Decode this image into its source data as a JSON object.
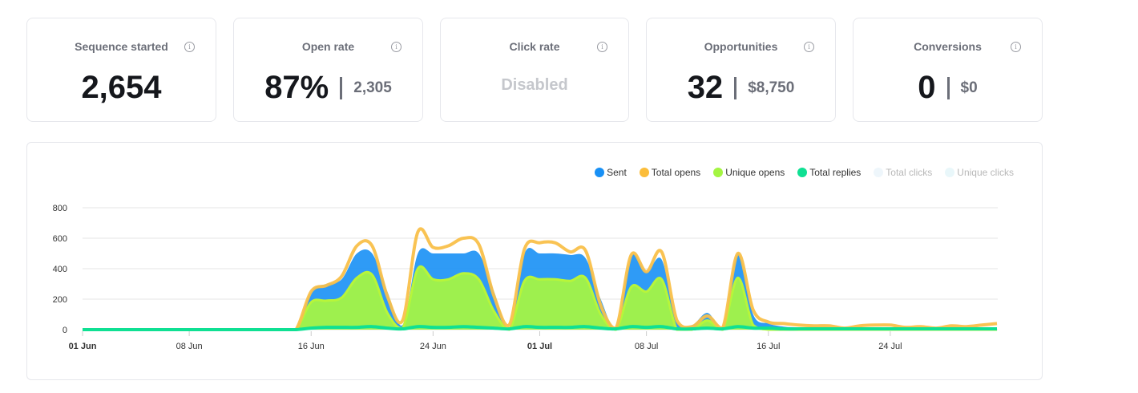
{
  "cards": [
    {
      "title": "Sequence started",
      "value": "2,654"
    },
    {
      "title": "Open rate",
      "value": "87%",
      "secondary": "2,305"
    },
    {
      "title": "Click rate",
      "value": "Disabled"
    },
    {
      "title": "Opportunities",
      "value": "32",
      "secondary": "$8,750"
    },
    {
      "title": "Conversions",
      "value": "0",
      "secondary": "$0"
    }
  ],
  "chart_data": {
    "type": "area",
    "x_start": "01 Jun",
    "x_end": "31 Jul",
    "xticks": [
      {
        "label": "01 Jun",
        "day": 0,
        "bold": true
      },
      {
        "label": "08 Jun",
        "day": 7
      },
      {
        "label": "16 Jun",
        "day": 15
      },
      {
        "label": "24 Jun",
        "day": 23
      },
      {
        "label": "01 Jul",
        "day": 30,
        "bold": true
      },
      {
        "label": "08 Jul",
        "day": 37
      },
      {
        "label": "16 Jul",
        "day": 45
      },
      {
        "label": "24 Jul",
        "day": 53
      }
    ],
    "yticks": [
      0,
      200,
      400,
      600,
      800
    ],
    "ylim": [
      0,
      800
    ],
    "legend": [
      {
        "name": "Sent",
        "color": "#1890f5",
        "active": true
      },
      {
        "name": "Total opens",
        "color": "#fbbd3a",
        "active": true
      },
      {
        "name": "Unique opens",
        "color": "#a4f542",
        "active": true
      },
      {
        "name": "Total replies",
        "color": "#0fe093",
        "active": true
      },
      {
        "name": "Total clicks",
        "color": "#eef6fb",
        "active": false
      },
      {
        "name": "Unique clicks",
        "color": "#e9f7fa",
        "active": false
      }
    ],
    "series": {
      "sent": [
        0,
        0,
        0,
        0,
        0,
        0,
        0,
        0,
        0,
        0,
        0,
        0,
        0,
        0,
        0,
        250,
        300,
        330,
        500,
        500,
        250,
        30,
        500,
        500,
        500,
        500,
        500,
        250,
        0,
        500,
        500,
        500,
        490,
        470,
        200,
        0,
        480,
        380,
        460,
        50,
        30,
        110,
        10,
        500,
        100,
        40,
        20,
        15,
        10,
        10,
        5,
        5,
        10,
        10,
        10,
        5,
        10,
        10,
        5,
        5,
        5
      ],
      "opens": [
        0,
        0,
        0,
        0,
        0,
        0,
        0,
        0,
        0,
        0,
        0,
        0,
        0,
        0,
        0,
        250,
        290,
        350,
        550,
        550,
        220,
        60,
        640,
        540,
        550,
        600,
        560,
        220,
        30,
        530,
        570,
        570,
        510,
        520,
        160,
        10,
        490,
        380,
        510,
        60,
        20,
        90,
        10,
        500,
        130,
        50,
        40,
        30,
        25,
        25,
        10,
        25,
        30,
        30,
        15,
        20,
        10,
        25,
        20,
        30,
        40
      ],
      "unique": [
        0,
        0,
        0,
        0,
        0,
        0,
        0,
        0,
        0,
        0,
        0,
        0,
        0,
        0,
        0,
        180,
        190,
        210,
        340,
        360,
        110,
        10,
        400,
        330,
        330,
        370,
        330,
        120,
        0,
        320,
        330,
        330,
        320,
        340,
        100,
        0,
        280,
        250,
        330,
        0,
        0,
        60,
        0,
        340,
        30,
        0,
        0,
        0,
        0,
        0,
        0,
        0,
        0,
        0,
        0,
        0,
        0,
        0,
        0,
        0,
        0
      ],
      "replies": [
        0,
        0,
        0,
        0,
        0,
        0,
        0,
        0,
        0,
        0,
        0,
        0,
        0,
        0,
        0,
        10,
        15,
        15,
        15,
        20,
        10,
        5,
        20,
        15,
        15,
        20,
        15,
        10,
        5,
        20,
        15,
        15,
        15,
        20,
        10,
        5,
        20,
        15,
        20,
        5,
        5,
        10,
        5,
        20,
        10,
        10,
        5,
        5,
        5,
        5,
        5,
        5,
        5,
        5,
        5,
        5,
        5,
        5,
        5,
        5,
        5
      ]
    }
  }
}
